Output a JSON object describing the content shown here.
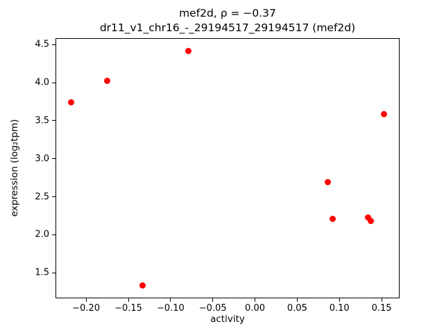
{
  "chart_data": {
    "type": "scatter",
    "title": "mef2d, ρ = −0.37",
    "subtitle": "dr11_v1_chr16_-_29194517_29194517 (mef2d)",
    "xlabel": "activity",
    "ylabel": "expression (log₂tpm)",
    "marker_color": "#ff0000",
    "legend": "none",
    "grid": false,
    "xlim": [
      -0.2355,
      0.1705
    ],
    "ylim": [
      1.175,
      4.575
    ],
    "xticks": {
      "values": [
        -0.2,
        -0.15,
        -0.1,
        -0.05,
        0.0,
        0.05,
        0.1,
        0.15
      ],
      "labels": [
        "−0.20",
        "−0.15",
        "−0.10",
        "−0.05",
        "0.00",
        "0.05",
        "0.10",
        "0.15"
      ]
    },
    "yticks": {
      "values": [
        1.5,
        2.0,
        2.5,
        3.0,
        3.5,
        4.0,
        4.5
      ],
      "labels": [
        "1.5",
        "2.0",
        "2.5",
        "3.0",
        "3.5",
        "4.0",
        "4.5"
      ]
    },
    "points": [
      {
        "x": -0.218,
        "y": 3.74
      },
      {
        "x": -0.175,
        "y": 4.02
      },
      {
        "x": -0.079,
        "y": 4.42
      },
      {
        "x": -0.133,
        "y": 1.33
      },
      {
        "x": 0.086,
        "y": 2.69
      },
      {
        "x": 0.092,
        "y": 2.21
      },
      {
        "x": 0.134,
        "y": 2.23
      },
      {
        "x": 0.137,
        "y": 2.18
      },
      {
        "x": 0.153,
        "y": 3.59
      }
    ]
  }
}
